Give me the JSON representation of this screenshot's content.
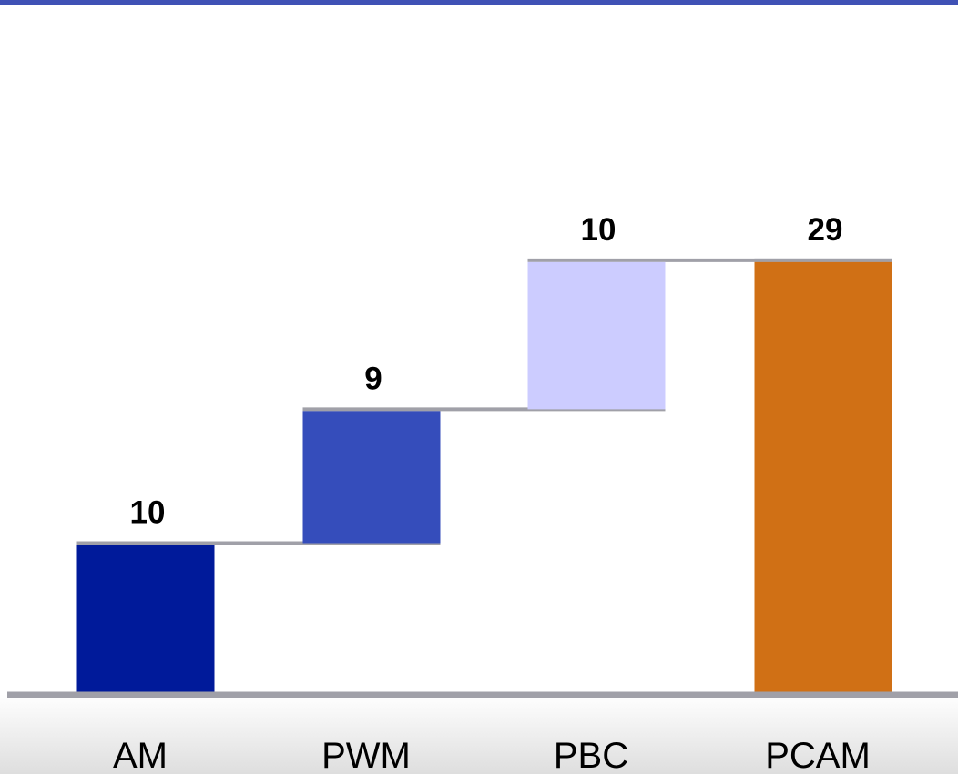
{
  "chart_data": {
    "type": "bar",
    "subtype": "waterfall",
    "title": "",
    "xlabel": "",
    "ylabel": "",
    "categories": [
      "AM",
      "PWM",
      "PBC",
      "PCAM"
    ],
    "values": [
      10,
      9,
      10,
      29
    ],
    "bar_kinds": [
      "delta",
      "delta",
      "delta",
      "total"
    ],
    "data_labels": [
      "10",
      "9",
      "10",
      "29"
    ],
    "colors": [
      "#001a9a",
      "#354dbb",
      "#ccccff",
      "#d07015"
    ],
    "connector_color": "#a0a0a8",
    "ylim": [
      0,
      30
    ],
    "grid": false,
    "legend": "none"
  }
}
